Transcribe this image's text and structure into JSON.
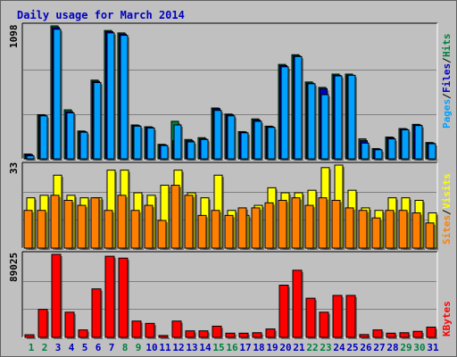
{
  "title": "Daily usage for March 2014",
  "colors": {
    "background": "#c0c0c0",
    "pages": "#00a0ff",
    "files": "#0000c0",
    "hits": "#008040",
    "visits": "#ffff00",
    "sites": "#ff8000",
    "kbytes": "#ff0000",
    "weekend_label": "#008040",
    "weekday_label": "#0000c0"
  },
  "chart_data": [
    {
      "type": "bar",
      "panel": "hits-files-pages",
      "max_label": "1098",
      "ylim": [
        0,
        1098
      ],
      "categories": [
        "1",
        "2",
        "3",
        "4",
        "5",
        "6",
        "7",
        "8",
        "9",
        "10",
        "11",
        "12",
        "13",
        "14",
        "15",
        "16",
        "17",
        "18",
        "19",
        "20",
        "21",
        "22",
        "23",
        "24",
        "25",
        "26",
        "27",
        "28",
        "29",
        "30",
        "31"
      ],
      "legend": [
        {
          "name": "Pages",
          "color": "#00a0ff"
        },
        {
          "name": "Files",
          "color": "#0000c0"
        },
        {
          "name": "Hits",
          "color": "#008040"
        }
      ],
      "series": [
        {
          "name": "Hits",
          "values": [
            40,
            365,
            1098,
            405,
            230,
            650,
            1060,
            1040,
            280,
            265,
            120,
            310,
            160,
            175,
            420,
            370,
            225,
            330,
            270,
            780,
            860,
            635,
            590,
            700,
            700,
            165,
            85,
            180,
            250,
            285,
            135
          ]
        },
        {
          "name": "Files",
          "values": [
            35,
            360,
            1085,
            390,
            225,
            640,
            1050,
            1030,
            275,
            260,
            115,
            150,
            150,
            165,
            415,
            365,
            220,
            320,
            265,
            770,
            850,
            625,
            580,
            690,
            690,
            150,
            80,
            175,
            245,
            280,
            130
          ]
        },
        {
          "name": "Pages",
          "values": [
            25,
            355,
            1070,
            380,
            220,
            630,
            1040,
            1020,
            270,
            255,
            110,
            280,
            140,
            160,
            400,
            355,
            215,
            310,
            260,
            760,
            845,
            620,
            530,
            685,
            690,
            130,
            75,
            165,
            240,
            275,
            125
          ]
        }
      ]
    },
    {
      "type": "bar",
      "panel": "visits-sites",
      "max_label": "33",
      "ylim": [
        0,
        33
      ],
      "categories": [
        "1",
        "2",
        "3",
        "4",
        "5",
        "6",
        "7",
        "8",
        "9",
        "10",
        "11",
        "12",
        "13",
        "14",
        "15",
        "16",
        "17",
        "18",
        "19",
        "20",
        "21",
        "22",
        "23",
        "24",
        "25",
        "26",
        "27",
        "28",
        "29",
        "30",
        "31"
      ],
      "legend": [
        {
          "name": "Sites",
          "color": "#ff8000"
        },
        {
          "name": "Visits",
          "color": "#ffff00"
        }
      ],
      "series": [
        {
          "name": "Visits",
          "values": [
            20,
            21,
            29,
            21,
            20,
            20,
            31,
            31,
            22,
            21,
            25,
            31,
            22,
            20,
            29,
            15,
            13,
            17,
            24,
            22,
            22,
            23,
            32,
            33,
            23,
            16,
            15,
            20,
            20,
            19,
            14
          ]
        },
        {
          "name": "Sites",
          "values": [
            15,
            15,
            21,
            19,
            17,
            20,
            15,
            21,
            15,
            17,
            11,
            25,
            21,
            13,
            15,
            13,
            16,
            16,
            18,
            19,
            20,
            17,
            20,
            19,
            16,
            15,
            12,
            15,
            15,
            14,
            10
          ]
        }
      ]
    },
    {
      "type": "bar",
      "panel": "kbytes",
      "max_label": "89025",
      "ylim": [
        0,
        89025
      ],
      "categories": [
        "1",
        "2",
        "3",
        "4",
        "5",
        "6",
        "7",
        "8",
        "9",
        "10",
        "11",
        "12",
        "13",
        "14",
        "15",
        "16",
        "17",
        "18",
        "19",
        "20",
        "21",
        "22",
        "23",
        "24",
        "25",
        "26",
        "27",
        "28",
        "29",
        "30",
        "31"
      ],
      "legend": [
        {
          "name": "KBytes",
          "color": "#ff0000"
        }
      ],
      "series": [
        {
          "name": "KBytes",
          "values": [
            2800,
            30000,
            89025,
            27000,
            8000,
            52000,
            87000,
            85000,
            17500,
            15000,
            2000,
            17500,
            7000,
            7000,
            12000,
            4500,
            4500,
            5000,
            9000,
            56000,
            72000,
            42000,
            27000,
            45000,
            45000,
            3000,
            8000,
            4500,
            5000,
            6500,
            11000
          ]
        }
      ]
    }
  ],
  "x_axis": {
    "day_labels": [
      "1",
      "2",
      "3",
      "4",
      "5",
      "6",
      "7",
      "8",
      "9",
      "10",
      "11",
      "12",
      "13",
      "14",
      "15",
      "16",
      "17",
      "18",
      "19",
      "20",
      "21",
      "22",
      "23",
      "24",
      "25",
      "26",
      "27",
      "28",
      "29",
      "30",
      "31"
    ],
    "weekend_days": [
      "1",
      "2",
      "8",
      "9",
      "15",
      "16",
      "22",
      "23",
      "29",
      "30"
    ]
  }
}
